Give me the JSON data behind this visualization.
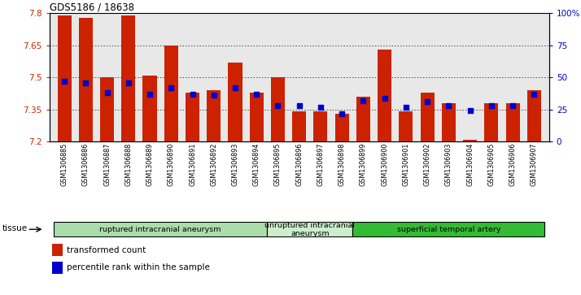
{
  "title": "GDS5186 / 18638",
  "samples": [
    "GSM1306885",
    "GSM1306886",
    "GSM1306887",
    "GSM1306888",
    "GSM1306889",
    "GSM1306890",
    "GSM1306891",
    "GSM1306892",
    "GSM1306893",
    "GSM1306894",
    "GSM1306895",
    "GSM1306896",
    "GSM1306897",
    "GSM1306898",
    "GSM1306899",
    "GSM1306900",
    "GSM1306901",
    "GSM1306902",
    "GSM1306903",
    "GSM1306904",
    "GSM1306905",
    "GSM1306906",
    "GSM1306907"
  ],
  "bar_values": [
    7.79,
    7.78,
    7.5,
    7.79,
    7.51,
    7.65,
    7.43,
    7.44,
    7.57,
    7.43,
    7.5,
    7.34,
    7.34,
    7.33,
    7.41,
    7.63,
    7.34,
    7.43,
    7.38,
    7.21,
    7.38,
    7.38,
    7.44
  ],
  "percentile_values": [
    47,
    46,
    38,
    46,
    37,
    42,
    37,
    36,
    42,
    37,
    28,
    28,
    27,
    22,
    32,
    34,
    27,
    31,
    28,
    24,
    28,
    28,
    37
  ],
  "ymin": 7.2,
  "ymax": 7.8,
  "yticks": [
    7.2,
    7.35,
    7.5,
    7.65,
    7.8
  ],
  "ytick_labels": [
    "7.2",
    "7.35",
    "7.5",
    "7.65",
    "7.8"
  ],
  "right_yticks": [
    0,
    25,
    50,
    75,
    100
  ],
  "right_ytick_labels": [
    "0",
    "25",
    "50",
    "75",
    "100%"
  ],
  "bar_color": "#cc2200",
  "dot_color": "#0000cc",
  "bg_color": "#e8e8e8",
  "grid_color": "#000000",
  "groups": [
    {
      "label": "ruptured intracranial aneurysm",
      "start": 0,
      "end": 9,
      "color": "#aaddaa"
    },
    {
      "label": "unruptured intracranial\naneurysm",
      "start": 10,
      "end": 13,
      "color": "#cceecc"
    },
    {
      "label": "superficial temporal artery",
      "start": 14,
      "end": 22,
      "color": "#33bb33"
    }
  ],
  "legend_bar_label": "transformed count",
  "legend_dot_label": "percentile rank within the sample",
  "tissue_label": "tissue"
}
